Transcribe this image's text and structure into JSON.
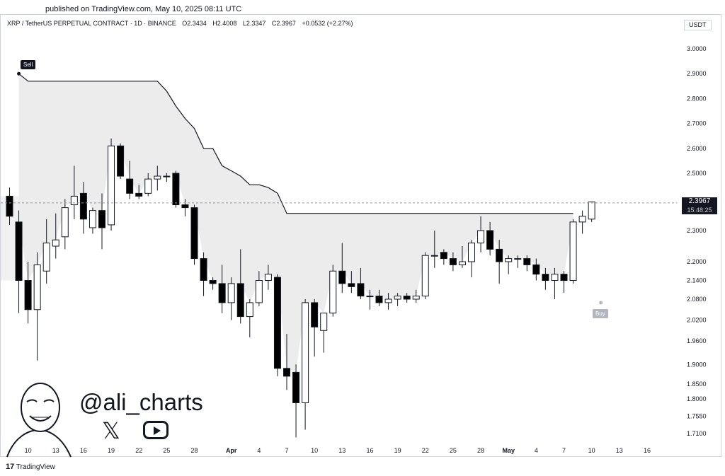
{
  "header": {
    "published": "published on TradingView.com, May 10, 2025 08:11 UTC"
  },
  "legend": {
    "symbol": "XRP / TetherUS PERPETUAL CONTRACT · 1D · BINANCE",
    "open": "O2.3434",
    "high": "H2.4008",
    "low": "L2.3347",
    "close": "C2.3967",
    "change": "+0.0532 (+2.27%)"
  },
  "currency_badge": "USDT",
  "last_price": {
    "value": "2.3967",
    "countdown": "15:48:25"
  },
  "signals": {
    "sell_label": "Sell",
    "buy_label": "Buy"
  },
  "watermark": {
    "handle": "@ali_charts",
    "x_icon": "x-logo-icon",
    "youtube_icon": "youtube-play-icon"
  },
  "footer": {
    "brand": "TradingView",
    "logo_icon": "tradingview-logo-icon"
  },
  "colors": {
    "up": "#ffffff",
    "down": "#000000",
    "outline": "#131722",
    "cloud": "#e6e6e6",
    "stop_line": "#131722",
    "grid": "#f0f3fa"
  },
  "chart_data": {
    "type": "candlestick",
    "y_axis_labels": [
      "3.0000",
      "2.9000",
      "2.8000",
      "2.7000",
      "2.6000",
      "2.5000",
      "2.3000",
      "2.2000",
      "2.1400",
      "2.0800",
      "2.0200",
      "1.9600",
      "1.9000",
      "1.8500",
      "1.8000",
      "1.7550",
      "1.7100"
    ],
    "y_axis_values": [
      3.0,
      2.9,
      2.8,
      2.7,
      2.6,
      2.5,
      2.3,
      2.2,
      2.14,
      2.08,
      2.02,
      1.96,
      1.9,
      1.85,
      1.8,
      1.755,
      1.71
    ],
    "x_tick_labels": [
      {
        "label": "10",
        "index": 2
      },
      {
        "label": "13",
        "index": 5
      },
      {
        "label": "16",
        "index": 8
      },
      {
        "label": "19",
        "index": 11
      },
      {
        "label": "22",
        "index": 14
      },
      {
        "label": "25",
        "index": 17
      },
      {
        "label": "28",
        "index": 20
      },
      {
        "label": "Apr",
        "index": 24,
        "bold": true
      },
      {
        "label": "4",
        "index": 27
      },
      {
        "label": "7",
        "index": 30
      },
      {
        "label": "10",
        "index": 33
      },
      {
        "label": "13",
        "index": 36
      },
      {
        "label": "16",
        "index": 39
      },
      {
        "label": "19",
        "index": 42
      },
      {
        "label": "22",
        "index": 45
      },
      {
        "label": "25",
        "index": 48
      },
      {
        "label": "28",
        "index": 51
      },
      {
        "label": "May",
        "index": 54,
        "bold": true
      },
      {
        "label": "4",
        "index": 57
      },
      {
        "label": "7",
        "index": 60
      },
      {
        "label": "10",
        "index": 63
      },
      {
        "label": "13",
        "index": 66
      },
      {
        "label": "16",
        "index": 69
      }
    ],
    "candles": [
      {
        "o": 2.42,
        "h": 2.45,
        "l": 2.32,
        "c": 2.35
      },
      {
        "o": 2.33,
        "h": 2.37,
        "l": 2.04,
        "c": 2.14
      },
      {
        "o": 2.14,
        "h": 2.2,
        "l": 2.01,
        "c": 2.05
      },
      {
        "o": 2.05,
        "h": 2.23,
        "l": 1.91,
        "c": 2.19
      },
      {
        "o": 2.17,
        "h": 2.34,
        "l": 2.13,
        "c": 2.26
      },
      {
        "o": 2.25,
        "h": 2.36,
        "l": 2.21,
        "c": 2.27
      },
      {
        "o": 2.28,
        "h": 2.41,
        "l": 2.24,
        "c": 2.38
      },
      {
        "o": 2.39,
        "h": 2.53,
        "l": 2.34,
        "c": 2.42
      },
      {
        "o": 2.43,
        "h": 2.47,
        "l": 2.29,
        "c": 2.34
      },
      {
        "o": 2.31,
        "h": 2.38,
        "l": 2.29,
        "c": 2.37
      },
      {
        "o": 2.37,
        "h": 2.43,
        "l": 2.24,
        "c": 2.31
      },
      {
        "o": 2.32,
        "h": 2.64,
        "l": 2.3,
        "c": 2.61
      },
      {
        "o": 2.61,
        "h": 2.62,
        "l": 2.48,
        "c": 2.49
      },
      {
        "o": 2.48,
        "h": 2.55,
        "l": 2.41,
        "c": 2.43
      },
      {
        "o": 2.43,
        "h": 2.46,
        "l": 2.41,
        "c": 2.42
      },
      {
        "o": 2.43,
        "h": 2.5,
        "l": 2.42,
        "c": 2.48
      },
      {
        "o": 2.48,
        "h": 2.53,
        "l": 2.44,
        "c": 2.49
      },
      {
        "o": 2.49,
        "h": 2.5,
        "l": 2.47,
        "c": 2.49
      },
      {
        "o": 2.5,
        "h": 2.51,
        "l": 2.38,
        "c": 2.39
      },
      {
        "o": 2.39,
        "h": 2.41,
        "l": 2.35,
        "c": 2.38
      },
      {
        "o": 2.38,
        "h": 2.39,
        "l": 2.19,
        "c": 2.21
      },
      {
        "o": 2.21,
        "h": 2.23,
        "l": 2.09,
        "c": 2.14
      },
      {
        "o": 2.14,
        "h": 2.15,
        "l": 2.11,
        "c": 2.13
      },
      {
        "o": 2.13,
        "h": 2.19,
        "l": 2.04,
        "c": 2.07
      },
      {
        "o": 2.07,
        "h": 2.15,
        "l": 2.02,
        "c": 2.13
      },
      {
        "o": 2.13,
        "h": 2.24,
        "l": 2.01,
        "c": 2.03
      },
      {
        "o": 2.03,
        "h": 2.08,
        "l": 1.97,
        "c": 2.07
      },
      {
        "o": 2.07,
        "h": 2.17,
        "l": 2.06,
        "c": 2.14
      },
      {
        "o": 2.14,
        "h": 2.19,
        "l": 2.11,
        "c": 2.16
      },
      {
        "o": 2.15,
        "h": 2.16,
        "l": 1.87,
        "c": 1.89
      },
      {
        "o": 1.89,
        "h": 1.98,
        "l": 1.83,
        "c": 1.87
      },
      {
        "o": 1.88,
        "h": 1.9,
        "l": 1.7,
        "c": 1.79
      },
      {
        "o": 1.79,
        "h": 2.08,
        "l": 1.72,
        "c": 2.07
      },
      {
        "o": 2.07,
        "h": 2.08,
        "l": 1.92,
        "c": 2.0
      },
      {
        "o": 1.99,
        "h": 2.04,
        "l": 1.93,
        "c": 2.04
      },
      {
        "o": 2.04,
        "h": 2.19,
        "l": 2.03,
        "c": 2.17
      },
      {
        "o": 2.17,
        "h": 2.26,
        "l": 2.1,
        "c": 2.13
      },
      {
        "o": 2.13,
        "h": 2.17,
        "l": 2.1,
        "c": 2.12
      },
      {
        "o": 2.13,
        "h": 2.18,
        "l": 2.08,
        "c": 2.09
      },
      {
        "o": 2.09,
        "h": 2.11,
        "l": 2.05,
        "c": 2.09
      },
      {
        "o": 2.09,
        "h": 2.11,
        "l": 2.06,
        "c": 2.07
      },
      {
        "o": 2.07,
        "h": 2.1,
        "l": 2.05,
        "c": 2.08
      },
      {
        "o": 2.08,
        "h": 2.1,
        "l": 2.06,
        "c": 2.09
      },
      {
        "o": 2.09,
        "h": 2.1,
        "l": 2.07,
        "c": 2.08
      },
      {
        "o": 2.08,
        "h": 2.11,
        "l": 2.07,
        "c": 2.09
      },
      {
        "o": 2.09,
        "h": 2.23,
        "l": 2.08,
        "c": 2.22
      },
      {
        "o": 2.22,
        "h": 2.3,
        "l": 2.18,
        "c": 2.22
      },
      {
        "o": 2.23,
        "h": 2.24,
        "l": 2.19,
        "c": 2.21
      },
      {
        "o": 2.21,
        "h": 2.23,
        "l": 2.17,
        "c": 2.19
      },
      {
        "o": 2.19,
        "h": 2.25,
        "l": 2.18,
        "c": 2.2
      },
      {
        "o": 2.2,
        "h": 2.27,
        "l": 2.15,
        "c": 2.26
      },
      {
        "o": 2.26,
        "h": 2.35,
        "l": 2.23,
        "c": 2.3
      },
      {
        "o": 2.3,
        "h": 2.33,
        "l": 2.22,
        "c": 2.24
      },
      {
        "o": 2.24,
        "h": 2.27,
        "l": 2.13,
        "c": 2.2
      },
      {
        "o": 2.2,
        "h": 2.22,
        "l": 2.16,
        "c": 2.21
      },
      {
        "o": 2.21,
        "h": 2.22,
        "l": 2.18,
        "c": 2.21
      },
      {
        "o": 2.21,
        "h": 2.22,
        "l": 2.17,
        "c": 2.19
      },
      {
        "o": 2.19,
        "h": 2.21,
        "l": 2.14,
        "c": 2.16
      },
      {
        "o": 2.16,
        "h": 2.18,
        "l": 2.11,
        "c": 2.14
      },
      {
        "o": 2.14,
        "h": 2.18,
        "l": 2.08,
        "c": 2.16
      },
      {
        "o": 2.16,
        "h": 2.17,
        "l": 2.1,
        "c": 2.14
      },
      {
        "o": 2.14,
        "h": 2.34,
        "l": 2.13,
        "c": 2.33
      },
      {
        "o": 2.33,
        "h": 2.37,
        "l": 2.29,
        "c": 2.35
      },
      {
        "o": 2.34,
        "h": 2.4,
        "l": 2.33,
        "c": 2.4
      }
    ],
    "supertrend": [
      [
        1,
        2.9
      ],
      [
        2,
        2.87
      ],
      [
        16,
        2.87
      ],
      [
        17,
        2.83
      ],
      [
        18,
        2.77
      ],
      [
        19,
        2.72
      ],
      [
        20,
        2.68
      ],
      [
        21,
        2.6
      ],
      [
        22,
        2.6
      ],
      [
        23,
        2.53
      ],
      [
        24,
        2.51
      ],
      [
        25,
        2.49
      ],
      [
        26,
        2.46
      ],
      [
        27,
        2.46
      ],
      [
        28,
        2.45
      ],
      [
        29,
        2.43
      ],
      [
        30,
        2.36
      ],
      [
        31,
        2.36
      ],
      [
        61,
        2.36
      ]
    ]
  }
}
